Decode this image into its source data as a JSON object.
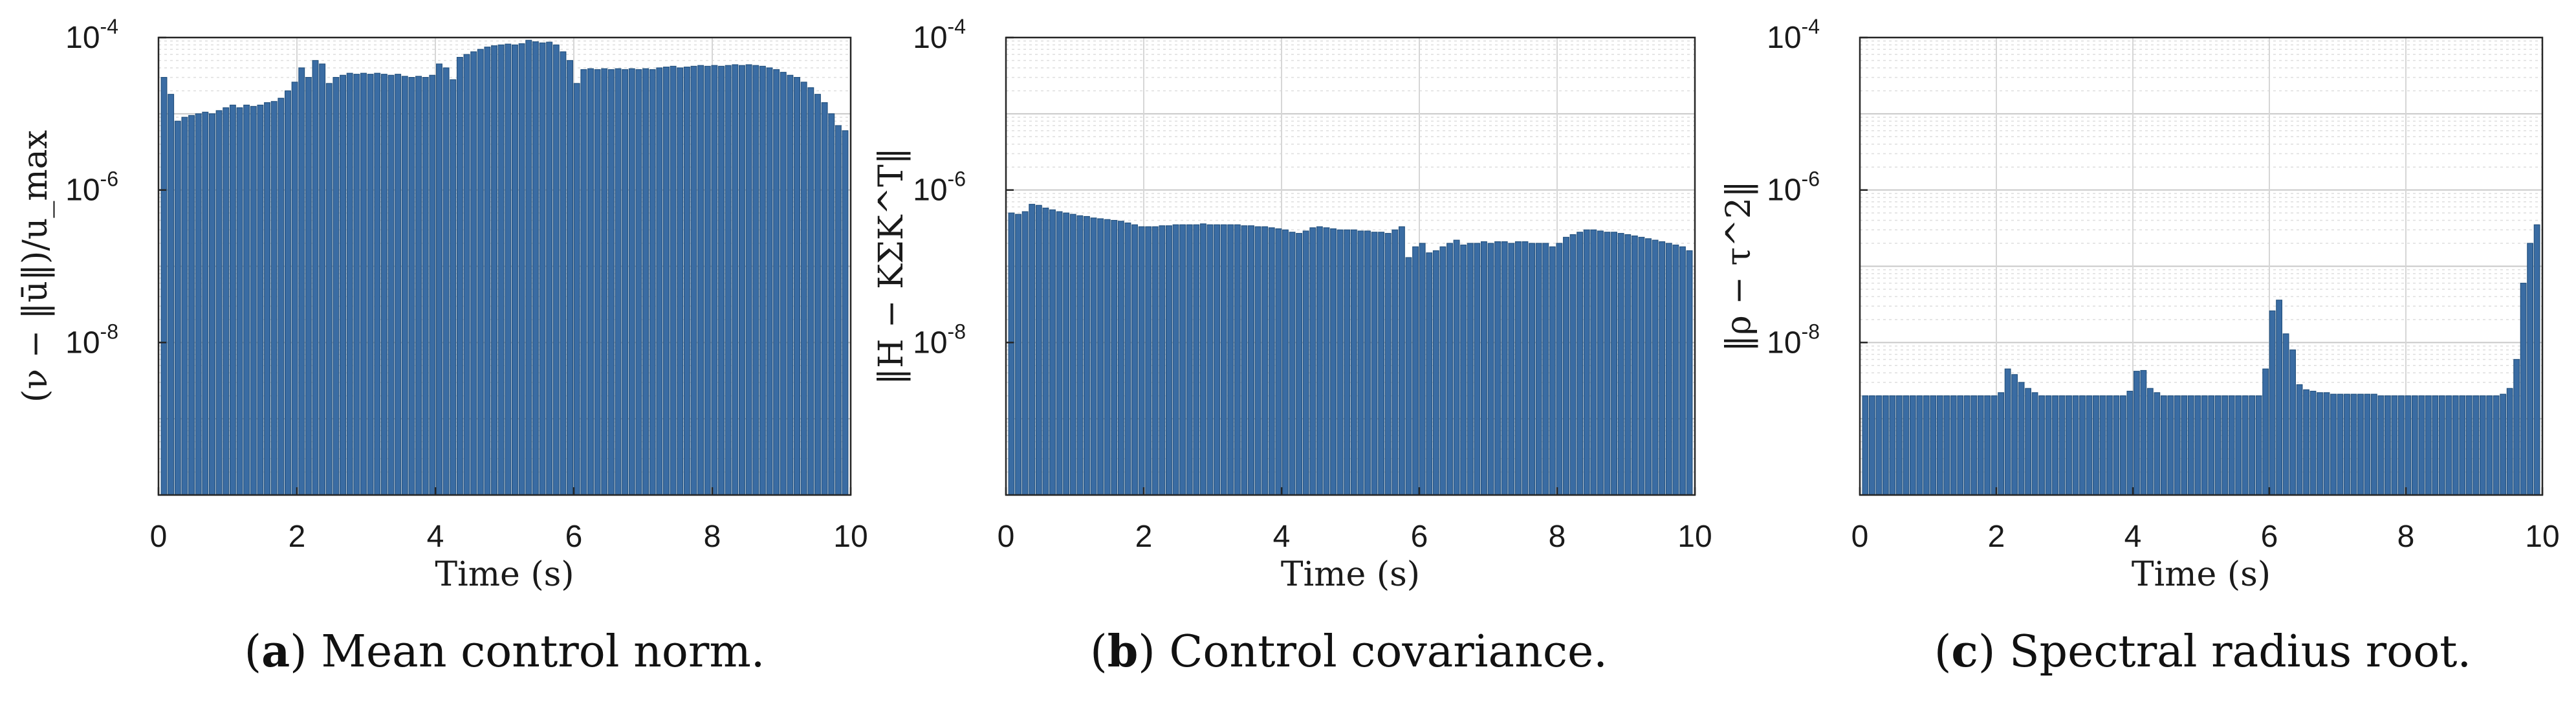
{
  "chart_data": [
    {
      "type": "bar",
      "panel_label": "a",
      "caption": "Mean control norm.",
      "xlabel": "Time (s)",
      "ylabel": "(ν − ‖ū‖)/u_max",
      "yscale": "log",
      "ylim": [
        1e-10,
        0.0001
      ],
      "xlim": [
        0,
        10
      ],
      "grid": true,
      "x_ticks": [
        "0",
        "2",
        "4",
        "6",
        "8",
        "10"
      ],
      "y_ticks": [
        {
          "base": "10",
          "exp": "-4"
        },
        {
          "base": "10",
          "exp": "-6"
        },
        {
          "base": "10",
          "exp": "-8"
        }
      ],
      "bar_color": "#3a6ca3",
      "x_start": 0,
      "dt": 0.1,
      "values": [
        3e-05,
        1.8e-05,
        8e-06,
        9e-06,
        9.5e-06,
        1e-05,
        1.05e-05,
        1e-05,
        1.1e-05,
        1.2e-05,
        1.3e-05,
        1.2e-05,
        1.3e-05,
        1.25e-05,
        1.3e-05,
        1.4e-05,
        1.45e-05,
        1.6e-05,
        2e-05,
        2.6e-05,
        4e-05,
        3e-05,
        5e-05,
        4.5e-05,
        2.5e-05,
        3e-05,
        3.2e-05,
        3.4e-05,
        3.3e-05,
        3.4e-05,
        3.3e-05,
        3.4e-05,
        3.3e-05,
        3.2e-05,
        3.3e-05,
        3.1e-05,
        3e-05,
        3.1e-05,
        3e-05,
        3.2e-05,
        4.5e-05,
        4e-05,
        2.8e-05,
        5.5e-05,
        6e-05,
        6.5e-05,
        7e-05,
        7.5e-05,
        7.8e-05,
        8e-05,
        8.2e-05,
        8e-05,
        8.3e-05,
        9.2e-05,
        8.8e-05,
        8.5e-05,
        8.7e-05,
        8e-05,
        6.5e-05,
        5e-05,
        2.5e-05,
        3.8e-05,
        3.9e-05,
        3.8e-05,
        3.9e-05,
        3.8e-05,
        3.9e-05,
        3.8e-05,
        3.9e-05,
        3.8e-05,
        3.9e-05,
        3.8e-05,
        4e-05,
        4.1e-05,
        4.2e-05,
        4e-05,
        4.1e-05,
        4.2e-05,
        4.3e-05,
        4.2e-05,
        4.3e-05,
        4.2e-05,
        4.3e-05,
        4.4e-05,
        4.3e-05,
        4.4e-05,
        4.3e-05,
        4.2e-05,
        4e-05,
        3.8e-05,
        3.5e-05,
        3.2e-05,
        3e-05,
        2.6e-05,
        2.2e-05,
        1.8e-05,
        1.4e-05,
        1e-05,
        7e-06,
        6e-06
      ]
    },
    {
      "type": "bar",
      "panel_label": "b",
      "caption": "Control covariance.",
      "xlabel": "Time (s)",
      "ylabel": "‖H − KΣK^T‖",
      "yscale": "log",
      "ylim": [
        1e-10,
        0.0001
      ],
      "xlim": [
        0,
        10
      ],
      "grid": true,
      "x_ticks": [
        "0",
        "2",
        "4",
        "6",
        "8",
        "10"
      ],
      "y_ticks": [
        {
          "base": "10",
          "exp": "-4"
        },
        {
          "base": "10",
          "exp": "-6"
        },
        {
          "base": "10",
          "exp": "-8"
        }
      ],
      "bar_color": "#3a6ca3",
      "x_start": 0,
      "dt": 0.1,
      "values": [
        5e-07,
        4.8e-07,
        5.2e-07,
        6.5e-07,
        6.3e-07,
        5.8e-07,
        5.5e-07,
        5.2e-07,
        5e-07,
        4.8e-07,
        4.6e-07,
        4.5e-07,
        4.3e-07,
        4.2e-07,
        4.1e-07,
        4e-07,
        3.9e-07,
        3.7e-07,
        3.5e-07,
        3.3e-07,
        3.3e-07,
        3.3e-07,
        3.4e-07,
        3.4e-07,
        3.5e-07,
        3.5e-07,
        3.5e-07,
        3.5e-07,
        3.6e-07,
        3.5e-07,
        3.5e-07,
        3.5e-07,
        3.5e-07,
        3.5e-07,
        3.4e-07,
        3.4e-07,
        3.3e-07,
        3.3e-07,
        3.2e-07,
        3.1e-07,
        3e-07,
        2.8e-07,
        2.7e-07,
        2.9e-07,
        3.2e-07,
        3.3e-07,
        3.2e-07,
        3.1e-07,
        3e-07,
        3e-07,
        3e-07,
        2.9e-07,
        2.9e-07,
        2.8e-07,
        2.8e-07,
        2.7e-07,
        3e-07,
        3.3e-07,
        1.3e-07,
        1.8e-07,
        2e-07,
        1.5e-07,
        1.6e-07,
        1.8e-07,
        2e-07,
        2.2e-07,
        1.9e-07,
        2e-07,
        2e-07,
        2.1e-07,
        2e-07,
        2.1e-07,
        2.1e-07,
        2e-07,
        2.1e-07,
        2.1e-07,
        2e-07,
        2e-07,
        2e-07,
        1.8e-07,
        2e-07,
        2.4e-07,
        2.6e-07,
        2.8e-07,
        3e-07,
        3e-07,
        2.9e-07,
        2.8e-07,
        2.8e-07,
        2.7e-07,
        2.6e-07,
        2.5e-07,
        2.4e-07,
        2.3e-07,
        2.2e-07,
        2.1e-07,
        2e-07,
        1.9e-07,
        1.8e-07,
        1.6e-07
      ]
    },
    {
      "type": "bar",
      "panel_label": "c",
      "caption": "Spectral radius root.",
      "xlabel": "Time (s)",
      "ylabel": "‖ρ − τ^2‖",
      "yscale": "log",
      "ylim": [
        1e-10,
        0.0001
      ],
      "xlim": [
        0,
        10
      ],
      "grid": true,
      "x_ticks": [
        "0",
        "2",
        "4",
        "6",
        "8",
        "10"
      ],
      "y_ticks": [
        {
          "base": "10",
          "exp": "-4"
        },
        {
          "base": "10",
          "exp": "-6"
        },
        {
          "base": "10",
          "exp": "-8"
        }
      ],
      "bar_color": "#3a6ca3",
      "x_start": 0,
      "dt": 0.1,
      "values": [
        2e-09,
        2e-09,
        2e-09,
        2e-09,
        2e-09,
        2e-09,
        2e-09,
        2e-09,
        2e-09,
        2e-09,
        2e-09,
        2e-09,
        2e-09,
        2e-09,
        2e-09,
        2e-09,
        2e-09,
        2e-09,
        2e-09,
        2e-09,
        2.2e-09,
        4.5e-09,
        3.8e-09,
        3e-09,
        2.5e-09,
        2.2e-09,
        2e-09,
        2e-09,
        2e-09,
        2e-09,
        2e-09,
        2e-09,
        2e-09,
        2e-09,
        2e-09,
        2e-09,
        2e-09,
        2e-09,
        2e-09,
        2.3e-09,
        4.2e-09,
        4.3e-09,
        2.5e-09,
        2.2e-09,
        2e-09,
        2e-09,
        2e-09,
        2e-09,
        2e-09,
        2e-09,
        2e-09,
        2e-09,
        2e-09,
        2e-09,
        2e-09,
        2e-09,
        2e-09,
        2e-09,
        2e-09,
        4.5e-09,
        2.6e-08,
        3.6e-08,
        1.3e-08,
        8e-09,
        2.8e-09,
        2.4e-09,
        2.3e-09,
        2.2e-09,
        2.2e-09,
        2.1e-09,
        2.1e-09,
        2.1e-09,
        2.1e-09,
        2.1e-09,
        2.1e-09,
        2.1e-09,
        2e-09,
        2e-09,
        2e-09,
        2e-09,
        2e-09,
        2e-09,
        2e-09,
        2e-09,
        2e-09,
        2e-09,
        2e-09,
        2e-09,
        2e-09,
        2e-09,
        2e-09,
        2e-09,
        2e-09,
        2e-09,
        2.1e-09,
        2.5e-09,
        6e-09,
        6e-08,
        2e-07,
        3.5e-07
      ]
    }
  ]
}
